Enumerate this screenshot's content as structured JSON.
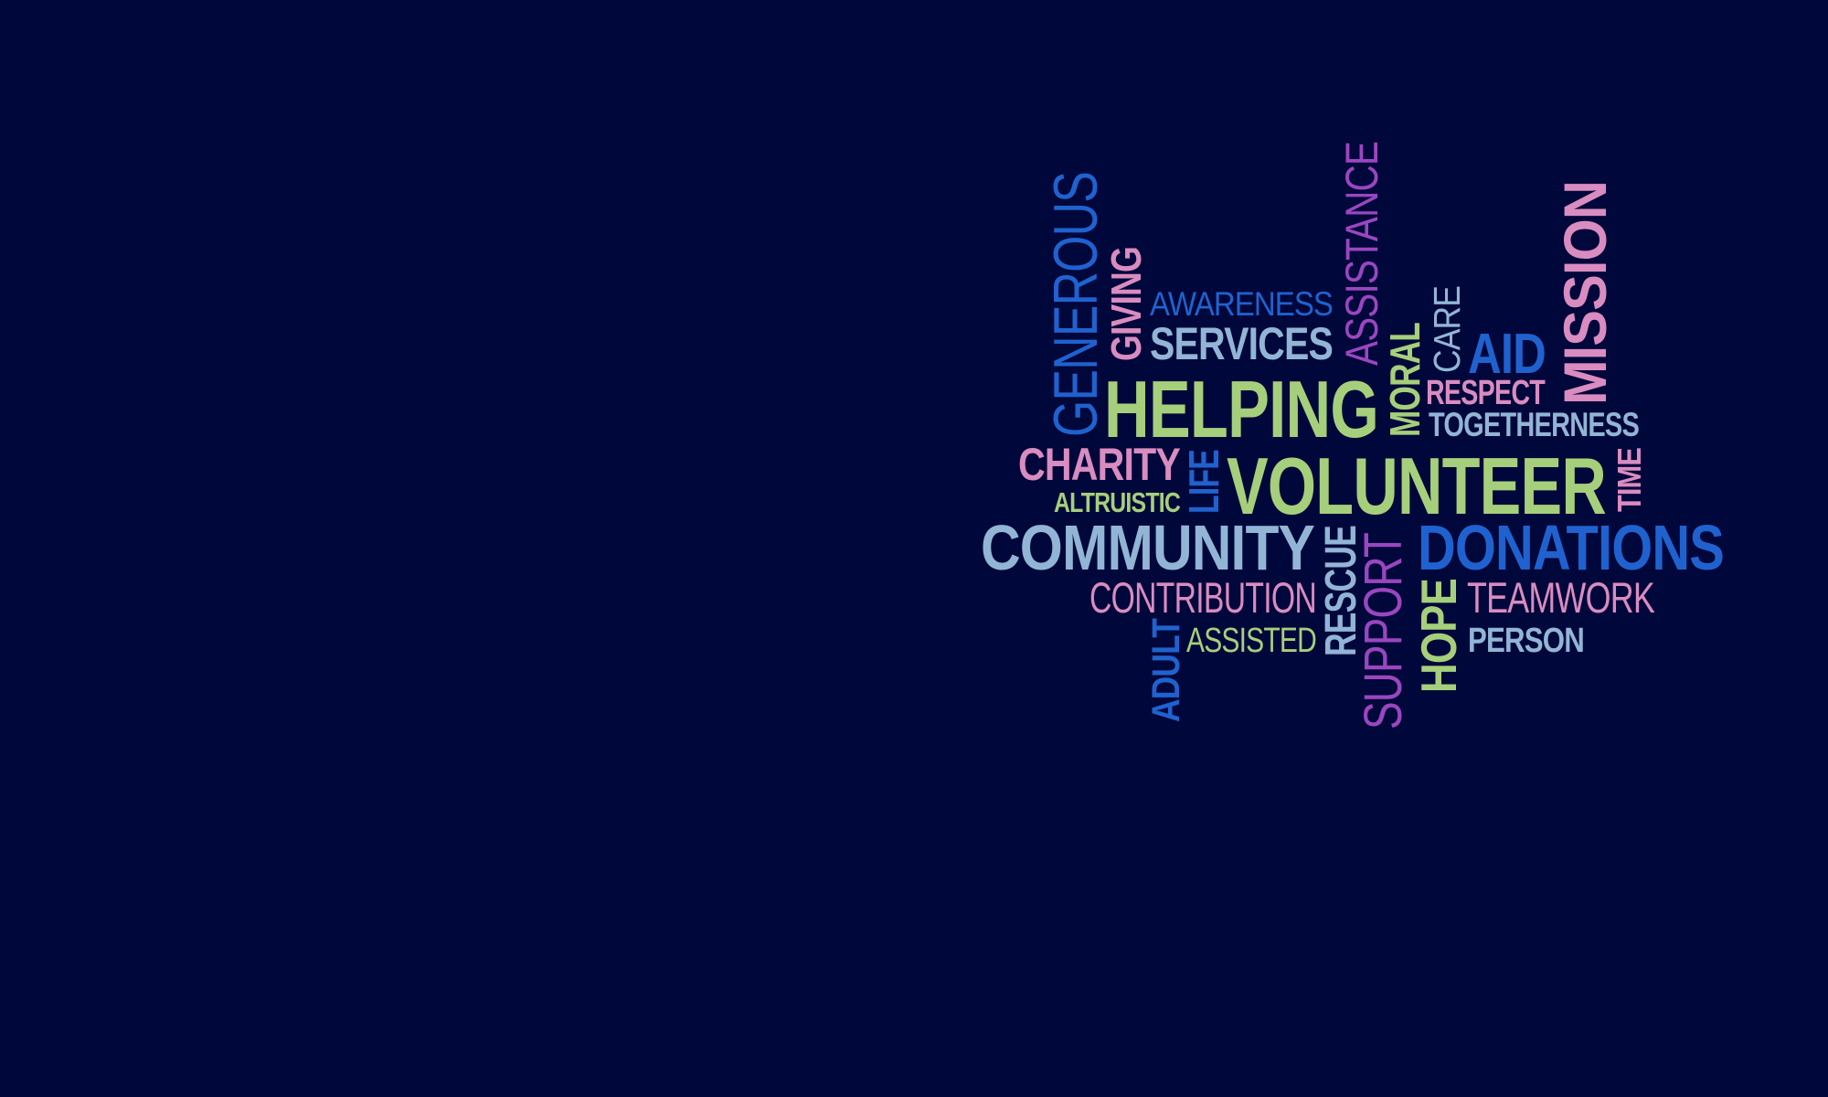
{
  "background": "#00073a",
  "colors": {
    "green": "#a6cf7c",
    "pink": "#d98cc0",
    "blue": "#1f62cf",
    "lightblue": "#92b5d6",
    "purple": "#9a46c0"
  },
  "words": [
    {
      "id": "generous",
      "text": "GENEROUS",
      "color": "blue"
    },
    {
      "id": "giving",
      "text": "GIVING",
      "color": "pink"
    },
    {
      "id": "awareness",
      "text": "AWARENESS",
      "color": "blue"
    },
    {
      "id": "services",
      "text": "SERVICES",
      "color": "lightblue"
    },
    {
      "id": "assistance",
      "text": "ASSISTANCE",
      "color": "purple"
    },
    {
      "id": "moral",
      "text": "MORAL",
      "color": "green"
    },
    {
      "id": "care",
      "text": "CARE",
      "color": "lightblue"
    },
    {
      "id": "aid",
      "text": "AID",
      "color": "blue"
    },
    {
      "id": "mission",
      "text": "MISSION",
      "color": "pink"
    },
    {
      "id": "helping",
      "text": "HELPING",
      "color": "green"
    },
    {
      "id": "respect",
      "text": "RESPECT",
      "color": "pink"
    },
    {
      "id": "togetherness",
      "text": "TOGETHERNESS",
      "color": "lightblue"
    },
    {
      "id": "charity",
      "text": "CHARITY",
      "color": "pink"
    },
    {
      "id": "altruistic",
      "text": "ALTRUISTIC",
      "color": "green"
    },
    {
      "id": "life",
      "text": "LIFE",
      "color": "blue"
    },
    {
      "id": "volunteer",
      "text": "VOLUNTEER",
      "color": "green"
    },
    {
      "id": "time",
      "text": "TIME",
      "color": "pink"
    },
    {
      "id": "community",
      "text": "COMMUNITY",
      "color": "lightblue"
    },
    {
      "id": "rescue",
      "text": "RESCUE",
      "color": "lightblue"
    },
    {
      "id": "donations",
      "text": "DONATIONS",
      "color": "blue"
    },
    {
      "id": "contribution",
      "text": "CONTRIBUTION",
      "color": "pink"
    },
    {
      "id": "teamwork",
      "text": "TEAMWORK",
      "color": "pink"
    },
    {
      "id": "support",
      "text": "SUPPORT",
      "color": "purple"
    },
    {
      "id": "hope",
      "text": "HOPE",
      "color": "green"
    },
    {
      "id": "adult",
      "text": "ADULT",
      "color": "blue"
    },
    {
      "id": "assisted",
      "text": "ASSISTED",
      "color": "green"
    },
    {
      "id": "person",
      "text": "PERSON",
      "color": "lightblue"
    }
  ]
}
